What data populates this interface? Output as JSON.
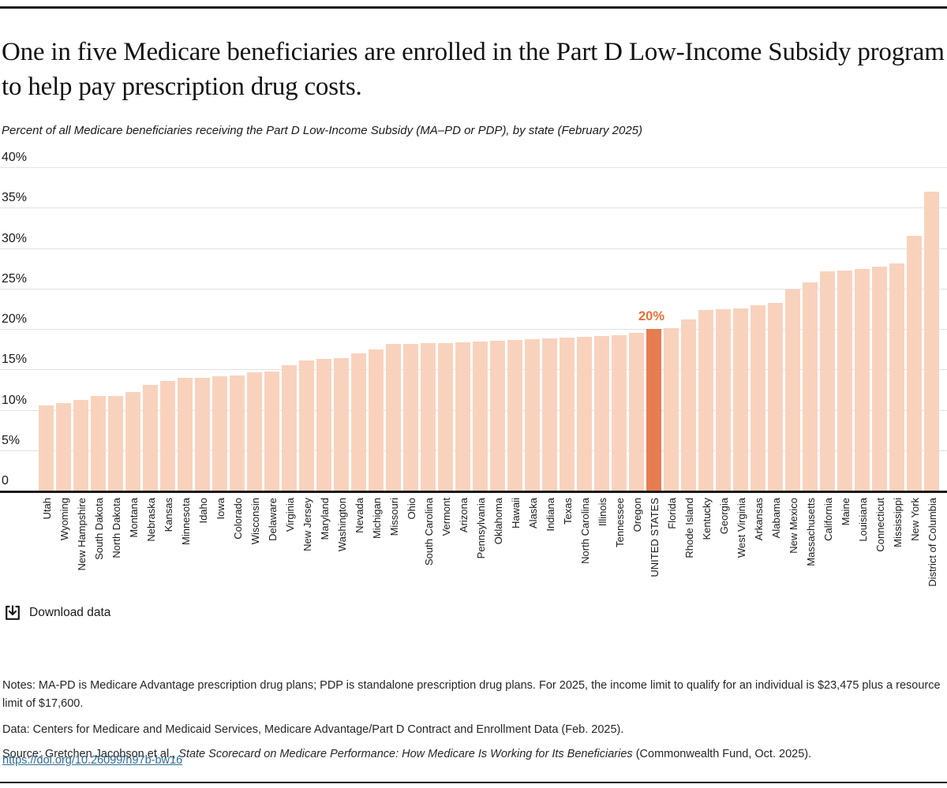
{
  "header": {
    "title": "One in five Medicare beneficiaries are enrolled in the Part D Low-Income Subsidy program to help pay prescription drug costs.",
    "subtitle": "Percent of all Medicare beneficiaries receiving the Part D Low-Income Subsidy (MA–PD or PDP), by state (February 2025)"
  },
  "chart_data": {
    "type": "bar",
    "title": "One in five Medicare beneficiaries are enrolled in the Part D Low-Income Subsidy program to help pay prescription drug costs.",
    "subtitle": "Percent of all Medicare beneficiaries receiving the Part D Low-Income Subsidy (MA–PD or PDP), by state (February 2025)",
    "categories": [
      "Utah",
      "Wyoming",
      "New Hampshire",
      "South Dakota",
      "North Dakota",
      "Montana",
      "Nebraska",
      "Kansas",
      "Minnesota",
      "Idaho",
      "Iowa",
      "Colorado",
      "Wisconsin",
      "Delaware",
      "Virginia",
      "New Jersey",
      "Maryland",
      "Washington",
      "Nevada",
      "Michigan",
      "Missouri",
      "Ohio",
      "South Carolina",
      "Vermont",
      "Arizona",
      "Pennsylvania",
      "Oklahoma",
      "Hawaii",
      "Alaska",
      "Indiana",
      "Texas",
      "North Carolina",
      "Illinois",
      "Tennessee",
      "Oregon",
      "UNITED STATES",
      "Florida",
      "Rhode Island",
      "Kentucky",
      "Georgia",
      "West Virginia",
      "Arkansas",
      "Alabama",
      "New Mexico",
      "Massachusetts",
      "California",
      "Maine",
      "Louisiana",
      "Connecticut",
      "Mississippi",
      "New York",
      "District of Columbia"
    ],
    "values": [
      10.5,
      10.8,
      11.2,
      11.7,
      11.7,
      12.2,
      13.1,
      13.6,
      14.0,
      14.0,
      14.1,
      14.2,
      14.6,
      14.7,
      15.5,
      16.1,
      16.3,
      16.4,
      17.0,
      17.5,
      18.1,
      18.1,
      18.2,
      18.2,
      18.3,
      18.4,
      18.5,
      18.6,
      18.7,
      18.8,
      18.9,
      19.0,
      19.1,
      19.2,
      19.5,
      20.0,
      20.1,
      21.2,
      22.3,
      22.4,
      22.5,
      22.9,
      23.2,
      24.9,
      25.8,
      27.1,
      27.2,
      27.4,
      27.7,
      28.1,
      31.5,
      37.0
    ],
    "highlight_category": "UNITED STATES",
    "annotation_label": "20%",
    "y_ticks": [
      {
        "label": "40%",
        "value": 40
      },
      {
        "label": "35%",
        "value": 35
      },
      {
        "label": "30%",
        "value": 30
      },
      {
        "label": "25%",
        "value": 25
      },
      {
        "label": "20%",
        "value": 20
      },
      {
        "label": "15%",
        "value": 15
      },
      {
        "label": "10%",
        "value": 10
      },
      {
        "label": "5%",
        "value": 5
      },
      {
        "label": "0",
        "value": 0
      }
    ],
    "ylim": [
      0,
      40
    ],
    "grid": true,
    "legend": "none",
    "bar_color": "#f9d2bd",
    "highlight_color": "#e87c51",
    "annotation_color": "#e7703c"
  },
  "toolbar": {
    "download_label": "Download data",
    "download_icon": "download-icon"
  },
  "footer": {
    "notes": "Notes: MA-PD is Medicare Advantage prescription drug plans; PDP is standalone prescription drug plans. For 2025, the income limit to qualify for an individual is $23,475 plus a resource limit of $17,600.",
    "data_line": "Data: Centers for Medicare and Medicaid Services, Medicare Advantage/Part D Contract and Enrollment Data (Feb. 2025).",
    "source_prefix": "Source: Gretchen Jacobson et al., ",
    "source_title": "State Scorecard on Medicare Performance: How Medicare Is Working for Its Beneficiaries",
    "source_suffix": " (Commonwealth Fund, Oct. 2025).",
    "link": "https://doi.org/10.26099/h97b-bw16",
    "link_color": "#2d6d94"
  }
}
